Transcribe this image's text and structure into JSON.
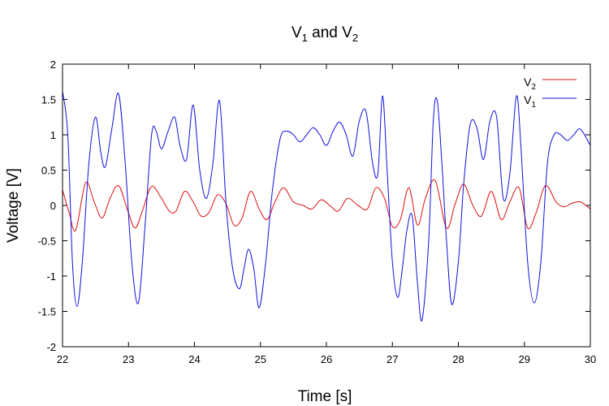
{
  "chart_data": {
    "type": "line",
    "title": {
      "base": "V",
      "sub1": "1",
      "joiner": " and ",
      "base2": "V",
      "sub2": "2"
    },
    "xlabel": "Time [s]",
    "ylabel": "Voltage [V]",
    "xlim": [
      22,
      30
    ],
    "ylim": [
      -2,
      2
    ],
    "xticks": [
      "22",
      "23",
      "24",
      "25",
      "26",
      "27",
      "28",
      "29",
      "30"
    ],
    "yticks": [
      "2",
      "1.5",
      "1",
      "0.5",
      "0",
      "-0.5",
      "-1",
      "-1.5",
      "-2"
    ],
    "grid": false,
    "legend_position": "top-right",
    "series": [
      {
        "name": {
          "base": "V",
          "sub": "2"
        },
        "color": "#e01010",
        "x": [
          22.0,
          22.1,
          22.2,
          22.35,
          22.48,
          22.6,
          22.72,
          22.85,
          22.98,
          23.1,
          23.22,
          23.35,
          23.5,
          23.62,
          23.72,
          23.85,
          23.98,
          24.1,
          24.22,
          24.35,
          24.48,
          24.6,
          24.72,
          24.85,
          24.98,
          25.1,
          25.22,
          25.35,
          25.5,
          25.65,
          25.78,
          25.92,
          26.05,
          26.18,
          26.32,
          26.48,
          26.62,
          26.75,
          26.88,
          27.0,
          27.12,
          27.25,
          27.38,
          27.5,
          27.65,
          27.82,
          27.95,
          28.08,
          28.22,
          28.35,
          28.5,
          28.65,
          28.78,
          28.92,
          29.05,
          29.18,
          29.32,
          29.48,
          29.6,
          29.72,
          29.85,
          30.0
        ],
        "y": [
          0.22,
          -0.1,
          -0.35,
          0.32,
          0.05,
          -0.18,
          0.1,
          0.28,
          -0.05,
          -0.32,
          -0.05,
          0.27,
          0.1,
          -0.08,
          -0.08,
          0.2,
          0.05,
          -0.15,
          -0.1,
          0.15,
          0.02,
          -0.28,
          -0.18,
          0.2,
          -0.05,
          -0.2,
          0.05,
          0.25,
          0.05,
          0.0,
          -0.05,
          0.08,
          0.0,
          -0.08,
          0.1,
          0.0,
          -0.05,
          0.25,
          0.1,
          -0.3,
          -0.2,
          0.25,
          -0.28,
          0.1,
          0.35,
          -0.32,
          0.02,
          0.3,
          0.0,
          -0.15,
          0.2,
          -0.2,
          0.05,
          0.25,
          -0.32,
          -0.1,
          0.28,
          0.05,
          -0.02,
          0.03,
          0.05,
          -0.05
        ]
      },
      {
        "name": {
          "base": "V",
          "sub": "1"
        },
        "color": "#1010e0",
        "x": [
          22.0,
          22.08,
          22.15,
          22.22,
          22.3,
          22.4,
          22.5,
          22.58,
          22.65,
          22.75,
          22.85,
          22.95,
          23.05,
          23.15,
          23.25,
          23.35,
          23.42,
          23.5,
          23.6,
          23.7,
          23.78,
          23.88,
          23.98,
          24.08,
          24.18,
          24.28,
          24.38,
          24.48,
          24.58,
          24.68,
          24.75,
          24.82,
          24.9,
          24.98,
          25.08,
          25.18,
          25.3,
          25.4,
          25.5,
          25.6,
          25.7,
          25.8,
          25.9,
          26.0,
          26.1,
          26.2,
          26.3,
          26.4,
          26.5,
          26.6,
          26.7,
          26.78,
          26.85,
          26.92,
          27.0,
          27.08,
          27.15,
          27.22,
          27.3,
          27.38,
          27.45,
          27.55,
          27.62,
          27.68,
          27.75,
          27.82,
          27.9,
          28.0,
          28.08,
          28.18,
          28.28,
          28.38,
          28.48,
          28.58,
          28.68,
          28.78,
          28.88,
          28.95,
          29.05,
          29.15,
          29.25,
          29.35,
          29.45,
          29.55,
          29.65,
          29.75,
          29.85,
          30.0
        ],
        "y": [
          1.62,
          1.0,
          -0.8,
          -1.43,
          -0.8,
          0.6,
          1.25,
          0.75,
          0.55,
          1.1,
          1.58,
          0.6,
          -0.8,
          -1.38,
          -0.3,
          1.0,
          1.05,
          0.8,
          1.05,
          1.25,
          0.85,
          0.65,
          1.42,
          0.5,
          0.1,
          0.6,
          1.48,
          0.0,
          -0.9,
          -1.18,
          -0.9,
          -0.62,
          -0.9,
          -1.45,
          -0.8,
          0.2,
          0.95,
          1.05,
          1.0,
          0.9,
          1.0,
          1.1,
          1.0,
          0.85,
          1.05,
          1.18,
          1.0,
          0.7,
          1.2,
          1.33,
          0.6,
          0.45,
          1.55,
          0.5,
          -0.8,
          -1.3,
          -0.9,
          -0.35,
          -0.15,
          -1.1,
          -1.62,
          -0.5,
          1.2,
          1.48,
          0.6,
          -0.5,
          -1.4,
          -0.8,
          0.3,
          1.15,
          1.1,
          0.65,
          1.2,
          1.25,
          0.1,
          0.45,
          1.55,
          0.8,
          -0.8,
          -1.38,
          -0.8,
          0.6,
          1.0,
          1.0,
          0.92,
          1.0,
          1.08,
          0.85
        ]
      }
    ]
  }
}
